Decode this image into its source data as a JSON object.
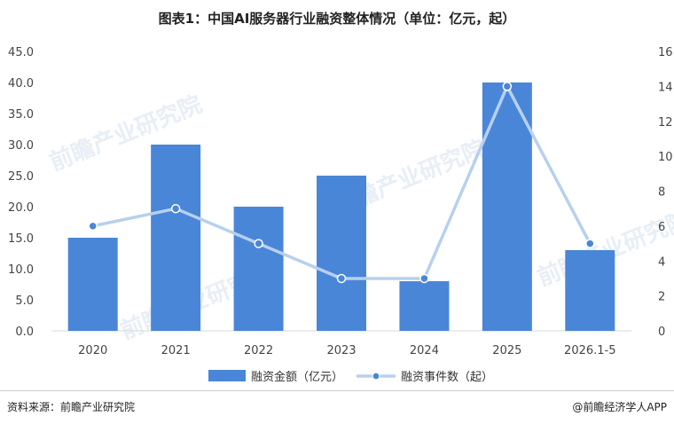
{
  "title": "图表1：中国AI服务器行业融资整体情况（单位：亿元，起）",
  "source": "资料来源：前瞻产业研究院",
  "brand": "@前瞻经济学人APP",
  "watermark": "前瞻产业研究院",
  "colors": {
    "bar": "#4a86d8",
    "line": "#b7d0ee",
    "marker": "#4a86d8"
  },
  "chart_data": {
    "type": "bar+line",
    "categories": [
      "2020",
      "2021",
      "2022",
      "2023",
      "2024",
      "2025",
      "2026.1-5"
    ],
    "series": [
      {
        "name": "融资金额（亿元）",
        "type": "bar",
        "axis": "left",
        "values": [
          15,
          30,
          20,
          25,
          8,
          40,
          13
        ]
      },
      {
        "name": "融资事件数（起）",
        "type": "line",
        "axis": "right",
        "values": [
          6,
          7,
          5,
          3,
          3,
          14,
          5
        ]
      }
    ],
    "y_left": {
      "range": [
        0,
        45
      ],
      "ticks": [
        "0.0",
        "5.0",
        "10.0",
        "15.0",
        "20.0",
        "25.0",
        "30.0",
        "35.0",
        "40.0",
        "45.0"
      ]
    },
    "y_right": {
      "range": [
        0,
        16
      ],
      "ticks": [
        "0",
        "2",
        "4",
        "6",
        "8",
        "10",
        "12",
        "14",
        "16"
      ]
    },
    "grid": false,
    "legend": "bottom"
  }
}
